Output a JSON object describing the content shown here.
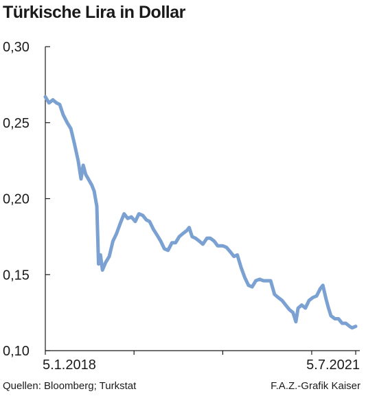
{
  "title": "Türkische Lira in Dollar",
  "source": "Quellen: Bloomberg; Turkstat",
  "credit": "F.A.Z.-Grafik Kaiser",
  "chart_data": {
    "type": "line",
    "title": "Türkische Lira in Dollar",
    "xlabel": "",
    "ylabel": "",
    "ylim": [
      0.1,
      0.3
    ],
    "y_ticks": [
      "0,10",
      "0,15",
      "0,20",
      "0,25",
      "0,30"
    ],
    "y_tick_values": [
      0.1,
      0.15,
      0.2,
      0.25,
      0.3
    ],
    "x_tick_labels": [
      "5.1.2018",
      "5.7.2021"
    ],
    "x_range": [
      "2018-01-05",
      "2021-07-05"
    ],
    "grid": false,
    "line_color": "#7aa1d2",
    "series": [
      {
        "name": "",
        "points": [
          [
            "2018-01-05",
            0.267
          ],
          [
            "2018-01-20",
            0.263
          ],
          [
            "2018-02-05",
            0.265
          ],
          [
            "2018-02-20",
            0.263
          ],
          [
            "2018-03-05",
            0.262
          ],
          [
            "2018-03-20",
            0.255
          ],
          [
            "2018-04-05",
            0.25
          ],
          [
            "2018-04-20",
            0.246
          ],
          [
            "2018-05-05",
            0.236
          ],
          [
            "2018-05-20",
            0.225
          ],
          [
            "2018-06-01",
            0.213
          ],
          [
            "2018-06-10",
            0.222
          ],
          [
            "2018-06-20",
            0.216
          ],
          [
            "2018-07-01",
            0.213
          ],
          [
            "2018-07-15",
            0.209
          ],
          [
            "2018-07-25",
            0.205
          ],
          [
            "2018-08-05",
            0.195
          ],
          [
            "2018-08-12",
            0.157
          ],
          [
            "2018-08-20",
            0.163
          ],
          [
            "2018-08-28",
            0.153
          ],
          [
            "2018-09-10",
            0.158
          ],
          [
            "2018-09-25",
            0.162
          ],
          [
            "2018-10-10",
            0.172
          ],
          [
            "2018-10-25",
            0.177
          ],
          [
            "2018-11-10",
            0.184
          ],
          [
            "2018-11-25",
            0.19
          ],
          [
            "2018-12-10",
            0.187
          ],
          [
            "2018-12-25",
            0.188
          ],
          [
            "2019-01-10",
            0.185
          ],
          [
            "2019-01-25",
            0.19
          ],
          [
            "2019-02-10",
            0.189
          ],
          [
            "2019-02-25",
            0.186
          ],
          [
            "2019-03-10",
            0.185
          ],
          [
            "2019-03-25",
            0.18
          ],
          [
            "2019-04-10",
            0.176
          ],
          [
            "2019-04-25",
            0.172
          ],
          [
            "2019-05-10",
            0.167
          ],
          [
            "2019-05-25",
            0.166
          ],
          [
            "2019-06-10",
            0.171
          ],
          [
            "2019-06-25",
            0.171
          ],
          [
            "2019-07-10",
            0.175
          ],
          [
            "2019-07-25",
            0.177
          ],
          [
            "2019-08-10",
            0.179
          ],
          [
            "2019-08-20",
            0.181
          ],
          [
            "2019-09-01",
            0.175
          ],
          [
            "2019-09-15",
            0.174
          ],
          [
            "2019-10-01",
            0.172
          ],
          [
            "2019-10-15",
            0.17
          ],
          [
            "2019-11-01",
            0.174
          ],
          [
            "2019-11-15",
            0.174
          ],
          [
            "2019-12-01",
            0.172
          ],
          [
            "2019-12-15",
            0.169
          ],
          [
            "2020-01-05",
            0.169
          ],
          [
            "2020-01-20",
            0.168
          ],
          [
            "2020-02-05",
            0.165
          ],
          [
            "2020-02-20",
            0.162
          ],
          [
            "2020-03-05",
            0.163
          ],
          [
            "2020-03-20",
            0.155
          ],
          [
            "2020-04-05",
            0.148
          ],
          [
            "2020-04-20",
            0.143
          ],
          [
            "2020-05-05",
            0.142
          ],
          [
            "2020-05-20",
            0.146
          ],
          [
            "2020-06-05",
            0.147
          ],
          [
            "2020-06-20",
            0.146
          ],
          [
            "2020-07-05",
            0.146
          ],
          [
            "2020-07-20",
            0.146
          ],
          [
            "2020-08-05",
            0.137
          ],
          [
            "2020-08-20",
            0.135
          ],
          [
            "2020-09-05",
            0.133
          ],
          [
            "2020-09-20",
            0.13
          ],
          [
            "2020-10-05",
            0.127
          ],
          [
            "2020-10-20",
            0.125
          ],
          [
            "2020-11-01",
            0.119
          ],
          [
            "2020-11-10",
            0.128
          ],
          [
            "2020-11-25",
            0.13
          ],
          [
            "2020-12-10",
            0.128
          ],
          [
            "2020-12-25",
            0.133
          ],
          [
            "2021-01-10",
            0.135
          ],
          [
            "2021-01-25",
            0.136
          ],
          [
            "2021-02-10",
            0.141
          ],
          [
            "2021-02-20",
            0.143
          ],
          [
            "2021-03-05",
            0.134
          ],
          [
            "2021-03-15",
            0.128
          ],
          [
            "2021-03-25",
            0.123
          ],
          [
            "2021-04-10",
            0.121
          ],
          [
            "2021-04-25",
            0.121
          ],
          [
            "2021-05-10",
            0.118
          ],
          [
            "2021-05-25",
            0.118
          ],
          [
            "2021-06-10",
            0.116
          ],
          [
            "2021-06-20",
            0.115
          ],
          [
            "2021-07-05",
            0.116
          ]
        ]
      }
    ]
  }
}
